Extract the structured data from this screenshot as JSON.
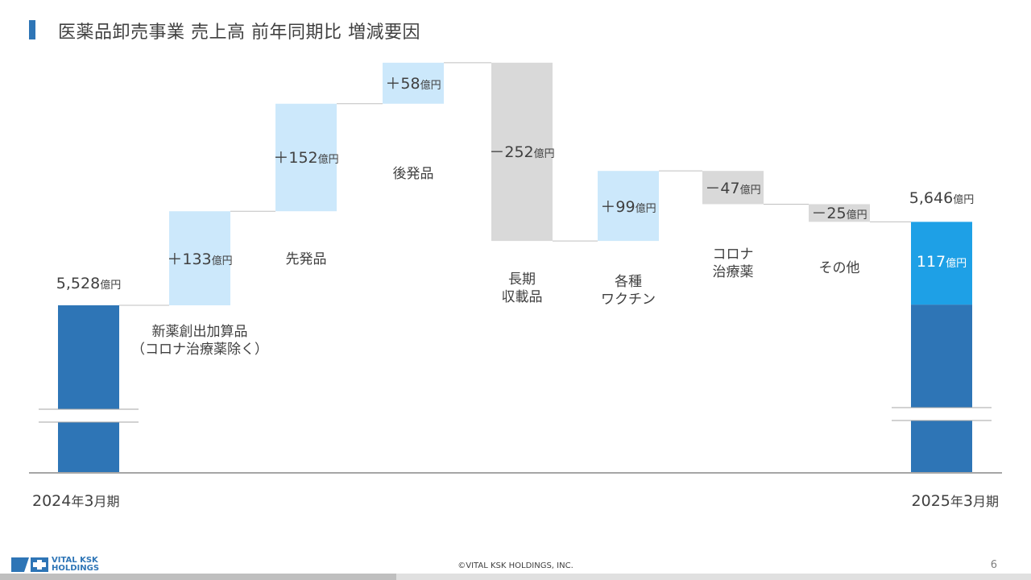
{
  "title": "医薬品卸売事業 売上高 前年同期比 増減要因",
  "chart_data": {
    "type": "waterfall",
    "unit": "億円",
    "start": {
      "value": 5528,
      "label": "5,528",
      "period": "2024年3月期"
    },
    "end": {
      "value": 5646,
      "label": "5,646",
      "period": "2025年3月期",
      "increase": 117,
      "increase_label": "117"
    },
    "steps": [
      {
        "category": "新薬創出加算品\n（コロナ治療薬除く）",
        "value": 133,
        "label": "＋133"
      },
      {
        "category": "先発品",
        "value": 152,
        "label": "＋152"
      },
      {
        "category": "後発品",
        "value": 58,
        "label": "＋58"
      },
      {
        "category": "長期\n収載品",
        "value": -252,
        "label": "－252"
      },
      {
        "category": "各種\nワクチン",
        "value": 99,
        "label": "＋99"
      },
      {
        "category": "コロナ\n治療薬",
        "value": -47,
        "label": "－47"
      },
      {
        "category": "その他",
        "value": -25,
        "label": "－25"
      }
    ],
    "colors": {
      "total": "#2e75b6",
      "increase": "#cce8fb",
      "decrease": "#d9d9d9",
      "highlight": "#1ea0e6"
    },
    "axis_break": true
  },
  "footer": {
    "copyright": "©VITAL KSK HOLDINGS, INC.",
    "page": "6",
    "logo_line1": "VITAL KSK",
    "logo_line2": "HOLDINGS"
  }
}
